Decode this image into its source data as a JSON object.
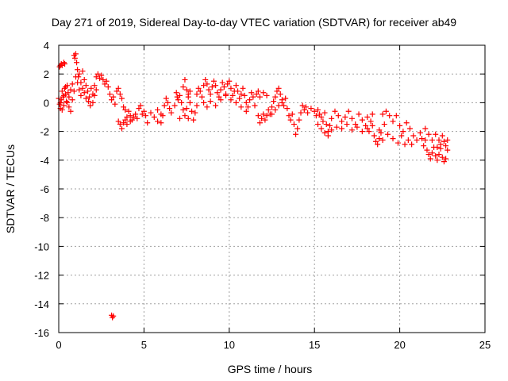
{
  "chart_data": {
    "type": "scatter",
    "title": "Day 271 of 2019, Sidereal Day-to-day VTEC variation (SDTVAR) for receiver ab49",
    "xlabel": "GPS time / hours",
    "ylabel": "SDTVAR / TECUs",
    "xlim": [
      0,
      25
    ],
    "ylim": [
      -16,
      4
    ],
    "xticks": [
      0,
      5,
      10,
      15,
      20,
      25
    ],
    "yticks": [
      -16,
      -14,
      -12,
      -10,
      -8,
      -6,
      -4,
      -2,
      0,
      2,
      4
    ],
    "grid": true,
    "marker": "+",
    "color": "#ff0000",
    "series": [
      {
        "name": "SDTVAR",
        "points": [
          [
            0.0,
            0.3
          ],
          [
            0.05,
            -0.1
          ],
          [
            0.1,
            -0.4
          ],
          [
            0.15,
            0.2
          ],
          [
            0.2,
            0.8
          ],
          [
            0.25,
            0.4
          ],
          [
            0.3,
            -0.2
          ],
          [
            0.35,
            1.0
          ],
          [
            0.4,
            0.6
          ],
          [
            0.45,
            0.1
          ],
          [
            0.5,
            1.2
          ],
          [
            0.55,
            0.7
          ],
          [
            0.6,
            -0.3
          ],
          [
            0.7,
            0.9
          ],
          [
            0.8,
            1.3
          ],
          [
            0.9,
            0.8
          ],
          [
            0.05,
            2.5
          ],
          [
            0.1,
            2.6
          ],
          [
            0.15,
            2.7
          ],
          [
            0.2,
            2.6
          ],
          [
            0.3,
            2.8
          ],
          [
            0.35,
            2.7
          ],
          [
            0.1,
            0.0
          ],
          [
            0.2,
            -0.5
          ],
          [
            0.3,
            0.5
          ],
          [
            0.4,
            1.1
          ],
          [
            0.5,
            0.0
          ],
          [
            0.6,
            0.4
          ],
          [
            0.7,
            -0.6
          ],
          [
            0.8,
            0.2
          ],
          [
            0.9,
            3.3
          ],
          [
            0.95,
            3.1
          ],
          [
            1.0,
            3.4
          ],
          [
            1.05,
            2.8
          ],
          [
            1.1,
            2.3
          ],
          [
            1.15,
            1.8
          ],
          [
            1.2,
            2.0
          ],
          [
            1.3,
            1.4
          ],
          [
            1.4,
            2.2
          ],
          [
            1.5,
            1.6
          ],
          [
            1.6,
            1.2
          ],
          [
            1.7,
            0.8
          ],
          [
            1.8,
            0.4
          ],
          [
            1.9,
            1.0
          ],
          [
            2.0,
            0.6
          ],
          [
            2.1,
            1.2
          ],
          [
            2.2,
            1.8
          ],
          [
            2.3,
            2.0
          ],
          [
            2.4,
            1.7
          ],
          [
            2.5,
            1.9
          ],
          [
            2.6,
            1.6
          ],
          [
            2.7,
            1.3
          ],
          [
            2.8,
            1.5
          ],
          [
            2.9,
            1.1
          ],
          [
            3.0,
            0.6
          ],
          [
            3.1,
            0.2
          ],
          [
            3.2,
            0.4
          ],
          [
            3.3,
            -0.1
          ],
          [
            1.0,
            1.8
          ],
          [
            1.1,
            1.4
          ],
          [
            1.2,
            0.9
          ],
          [
            1.3,
            0.5
          ],
          [
            1.4,
            1.0
          ],
          [
            1.5,
            0.7
          ],
          [
            1.6,
            0.3
          ],
          [
            1.75,
            0.1
          ],
          [
            1.85,
            -0.2
          ],
          [
            2.0,
            0.0
          ],
          [
            2.1,
            0.5
          ],
          [
            2.2,
            0.9
          ],
          [
            3.4,
            0.8
          ],
          [
            3.5,
            1.0
          ],
          [
            3.6,
            0.6
          ],
          [
            3.7,
            0.3
          ],
          [
            3.8,
            -0.3
          ],
          [
            3.9,
            -0.5
          ],
          [
            4.0,
            -1.0
          ],
          [
            4.1,
            -0.6
          ],
          [
            4.2,
            -0.9
          ],
          [
            4.3,
            -1.2
          ],
          [
            3.5,
            -1.3
          ],
          [
            3.6,
            -1.5
          ],
          [
            3.7,
            -1.8
          ],
          [
            3.8,
            -1.4
          ],
          [
            3.9,
            -1.2
          ],
          [
            4.0,
            -1.5
          ],
          [
            4.2,
            -1.3
          ],
          [
            4.4,
            -1.0
          ],
          [
            4.5,
            -0.8
          ],
          [
            4.6,
            -1.1
          ],
          [
            4.7,
            -0.4
          ],
          [
            4.8,
            -0.2
          ],
          [
            4.9,
            -0.8
          ],
          [
            5.0,
            -0.6
          ],
          [
            5.1,
            -0.9
          ],
          [
            5.2,
            -1.4
          ],
          [
            5.4,
            -0.7
          ],
          [
            5.6,
            -1.0
          ],
          [
            5.8,
            -0.5
          ],
          [
            6.0,
            -0.8
          ],
          [
            6.2,
            -0.2
          ],
          [
            6.3,
            0.3
          ],
          [
            6.4,
            0.0
          ],
          [
            6.5,
            -0.4
          ],
          [
            6.6,
            -0.7
          ],
          [
            6.8,
            -0.2
          ],
          [
            7.0,
            0.2
          ],
          [
            7.1,
            0.5
          ],
          [
            7.2,
            0.0
          ],
          [
            7.3,
            -0.5
          ],
          [
            7.4,
            -0.9
          ],
          [
            7.5,
            -0.4
          ],
          [
            7.6,
            0.4
          ],
          [
            7.7,
            0.0
          ],
          [
            7.8,
            -0.6
          ],
          [
            7.9,
            -1.2
          ],
          [
            8.0,
            -0.7
          ],
          [
            8.1,
            -0.2
          ],
          [
            7.3,
            1.1
          ],
          [
            7.4,
            1.6
          ],
          [
            7.5,
            0.9
          ],
          [
            7.6,
            0.6
          ],
          [
            7.7,
            0.8
          ],
          [
            6.9,
            0.7
          ],
          [
            6.95,
            0.4
          ],
          [
            5.8,
            -1.3
          ],
          [
            6.0,
            -1.4
          ],
          [
            6.1,
            -0.9
          ],
          [
            7.1,
            -1.1
          ],
          [
            7.6,
            -1.1
          ],
          [
            8.1,
            0.6
          ],
          [
            8.2,
            1.0
          ],
          [
            8.3,
            0.8
          ],
          [
            8.4,
            0.4
          ],
          [
            8.5,
            1.2
          ],
          [
            8.6,
            1.6
          ],
          [
            8.7,
            1.3
          ],
          [
            8.8,
            0.9
          ],
          [
            8.9,
            0.6
          ],
          [
            9.0,
            1.1
          ],
          [
            9.1,
            1.5
          ],
          [
            9.2,
            1.2
          ],
          [
            9.3,
            0.7
          ],
          [
            9.4,
            0.4
          ],
          [
            9.5,
            0.9
          ],
          [
            9.6,
            1.4
          ],
          [
            9.7,
            1.1
          ],
          [
            9.8,
            0.6
          ],
          [
            9.9,
            1.3
          ],
          [
            10.0,
            1.5
          ],
          [
            10.1,
            1.0
          ],
          [
            10.2,
            0.5
          ],
          [
            10.3,
            0.8
          ],
          [
            10.4,
            1.2
          ],
          [
            10.5,
            0.8
          ],
          [
            10.6,
            0.3
          ],
          [
            10.7,
            0.6
          ],
          [
            10.8,
            1.0
          ],
          [
            10.9,
            0.5
          ],
          [
            11.0,
            0.0
          ],
          [
            11.1,
            -0.3
          ],
          [
            11.2,
            0.2
          ],
          [
            11.3,
            0.7
          ],
          [
            11.4,
            0.4
          ],
          [
            11.5,
            -0.2
          ],
          [
            8.5,
            0.0
          ],
          [
            8.7,
            -0.3
          ],
          [
            8.9,
            0.1
          ],
          [
            9.2,
            -0.2
          ],
          [
            9.5,
            0.2
          ],
          [
            9.8,
            0.5
          ],
          [
            10.1,
            0.2
          ],
          [
            10.4,
            0.0
          ],
          [
            10.7,
            -0.3
          ],
          [
            11.0,
            -0.6
          ],
          [
            11.6,
            0.6
          ],
          [
            11.7,
            0.8
          ],
          [
            11.8,
            0.4
          ],
          [
            12.0,
            0.7
          ],
          [
            12.2,
            0.5
          ],
          [
            11.7,
            -0.9
          ],
          [
            11.8,
            -1.4
          ],
          [
            11.9,
            -1.1
          ],
          [
            12.0,
            -0.8
          ],
          [
            12.1,
            -1.2
          ],
          [
            12.2,
            -0.9
          ],
          [
            12.3,
            -0.5
          ],
          [
            12.4,
            -0.8
          ],
          [
            12.5,
            -0.3
          ],
          [
            12.6,
            0.1
          ],
          [
            12.7,
            0.4
          ],
          [
            12.8,
            0.8
          ],
          [
            12.9,
            1.0
          ],
          [
            13.0,
            0.6
          ],
          [
            13.1,
            0.2
          ],
          [
            13.2,
            -0.2
          ],
          [
            13.3,
            0.3
          ],
          [
            13.4,
            -0.4
          ],
          [
            13.5,
            -0.9
          ],
          [
            13.6,
            -1.2
          ],
          [
            13.7,
            -0.8
          ],
          [
            13.8,
            -1.5
          ],
          [
            13.9,
            -2.2
          ],
          [
            14.0,
            -1.8
          ],
          [
            14.1,
            -1.2
          ],
          [
            14.2,
            -0.7
          ],
          [
            12.5,
            -0.8
          ],
          [
            12.7,
            -0.5
          ],
          [
            12.9,
            -0.2
          ],
          [
            13.1,
            0.0
          ],
          [
            14.3,
            -0.2
          ],
          [
            14.4,
            -0.5
          ],
          [
            14.5,
            -0.3
          ],
          [
            14.6,
            -0.7
          ],
          [
            14.8,
            -0.4
          ],
          [
            15.0,
            -0.6
          ],
          [
            15.1,
            -0.9
          ],
          [
            15.2,
            -0.5
          ],
          [
            15.3,
            -0.8
          ],
          [
            15.4,
            -1.0
          ],
          [
            15.5,
            -1.3
          ],
          [
            15.6,
            -0.7
          ],
          [
            15.7,
            -1.5
          ],
          [
            15.8,
            -2.0
          ],
          [
            15.9,
            -1.6
          ],
          [
            16.0,
            -1.1
          ],
          [
            16.2,
            -0.6
          ],
          [
            16.4,
            -0.9
          ],
          [
            16.6,
            -1.3
          ],
          [
            16.8,
            -1.0
          ],
          [
            17.0,
            -0.6
          ],
          [
            17.2,
            -1.1
          ],
          [
            17.4,
            -1.5
          ],
          [
            17.6,
            -0.8
          ],
          [
            17.8,
            -1.2
          ],
          [
            18.0,
            -1.6
          ],
          [
            18.1,
            -1.0
          ],
          [
            18.2,
            -2.0
          ],
          [
            18.3,
            -1.3
          ],
          [
            18.4,
            -0.8
          ],
          [
            15.2,
            -1.5
          ],
          [
            15.4,
            -1.8
          ],
          [
            15.6,
            -2.1
          ],
          [
            15.8,
            -2.3
          ],
          [
            16.0,
            -1.9
          ],
          [
            16.3,
            -1.7
          ],
          [
            16.6,
            -1.8
          ],
          [
            16.9,
            -1.5
          ],
          [
            17.2,
            -1.9
          ],
          [
            17.5,
            -1.7
          ],
          [
            17.8,
            -2.0
          ],
          [
            18.1,
            -1.8
          ],
          [
            18.4,
            -1.6
          ],
          [
            18.5,
            -2.3
          ],
          [
            18.6,
            -2.7
          ],
          [
            18.7,
            -2.9
          ],
          [
            18.8,
            -2.5
          ],
          [
            18.9,
            -2.1
          ],
          [
            19.0,
            -0.8
          ],
          [
            19.2,
            -0.6
          ],
          [
            19.4,
            -0.9
          ],
          [
            19.6,
            -1.3
          ],
          [
            19.8,
            -0.9
          ],
          [
            20.0,
            -1.6
          ],
          [
            20.2,
            -2.0
          ],
          [
            20.4,
            -1.4
          ],
          [
            20.6,
            -1.8
          ],
          [
            20.8,
            -2.3
          ],
          [
            21.0,
            -2.6
          ],
          [
            21.2,
            -2.1
          ],
          [
            19.0,
            -2.6
          ],
          [
            19.3,
            -2.2
          ],
          [
            19.6,
            -2.5
          ],
          [
            19.9,
            -2.8
          ],
          [
            20.1,
            -2.3
          ],
          [
            20.3,
            -2.9
          ],
          [
            20.5,
            -2.6
          ],
          [
            20.7,
            -2.9
          ],
          [
            18.8,
            -1.9
          ],
          [
            19.1,
            -1.5
          ],
          [
            21.3,
            -2.5
          ],
          [
            21.4,
            -3.0
          ],
          [
            21.5,
            -2.6
          ],
          [
            21.6,
            -3.3
          ],
          [
            21.7,
            -3.6
          ],
          [
            21.8,
            -3.9
          ],
          [
            21.9,
            -3.5
          ],
          [
            22.0,
            -3.1
          ],
          [
            22.1,
            -3.7
          ],
          [
            22.2,
            -4.0
          ],
          [
            22.3,
            -3.6
          ],
          [
            22.4,
            -3.2
          ],
          [
            22.5,
            -3.8
          ],
          [
            22.6,
            -4.1
          ],
          [
            22.7,
            -3.9
          ],
          [
            21.5,
            -1.8
          ],
          [
            21.7,
            -2.2
          ],
          [
            21.9,
            -2.6
          ],
          [
            22.1,
            -2.2
          ],
          [
            22.3,
            -2.6
          ],
          [
            22.5,
            -2.3
          ],
          [
            22.6,
            -2.7
          ],
          [
            22.7,
            -3.0
          ],
          [
            22.8,
            -2.6
          ],
          [
            22.8,
            -3.3
          ],
          [
            22.4,
            -2.9
          ],
          [
            22.2,
            -3.1
          ],
          [
            3.1,
            -14.8
          ],
          [
            3.15,
            -14.95
          ],
          [
            3.2,
            -14.85
          ]
        ]
      }
    ]
  }
}
